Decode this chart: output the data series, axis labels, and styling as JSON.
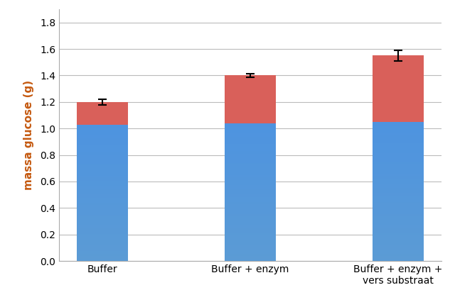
{
  "categories": [
    "Buffer",
    "Buffer + enzym",
    "Buffer + enzym +\nvers substraat"
  ],
  "blue_values": [
    1.03,
    1.04,
    1.05
  ],
  "red_values": [
    0.17,
    0.36,
    0.5
  ],
  "total_values": [
    1.2,
    1.4,
    1.55
  ],
  "error_bars": [
    0.02,
    0.015,
    0.04
  ],
  "blue_color": "#5B9BD5",
  "red_color": "#D9605A",
  "ylabel": "massa glucose (g)",
  "ylim": [
    0.0,
    1.9
  ],
  "yticks": [
    0.0,
    0.2,
    0.4,
    0.6,
    0.8,
    1.0,
    1.2,
    1.4,
    1.6,
    1.8
  ],
  "bar_width": 0.35,
  "ylabel_color": "#C55A11",
  "ylabel_fontsize": 11,
  "tick_fontsize": 10,
  "xlabel_fontsize": 10,
  "grid_color": "#BBBBBB",
  "spine_color": "#AAAAAA"
}
